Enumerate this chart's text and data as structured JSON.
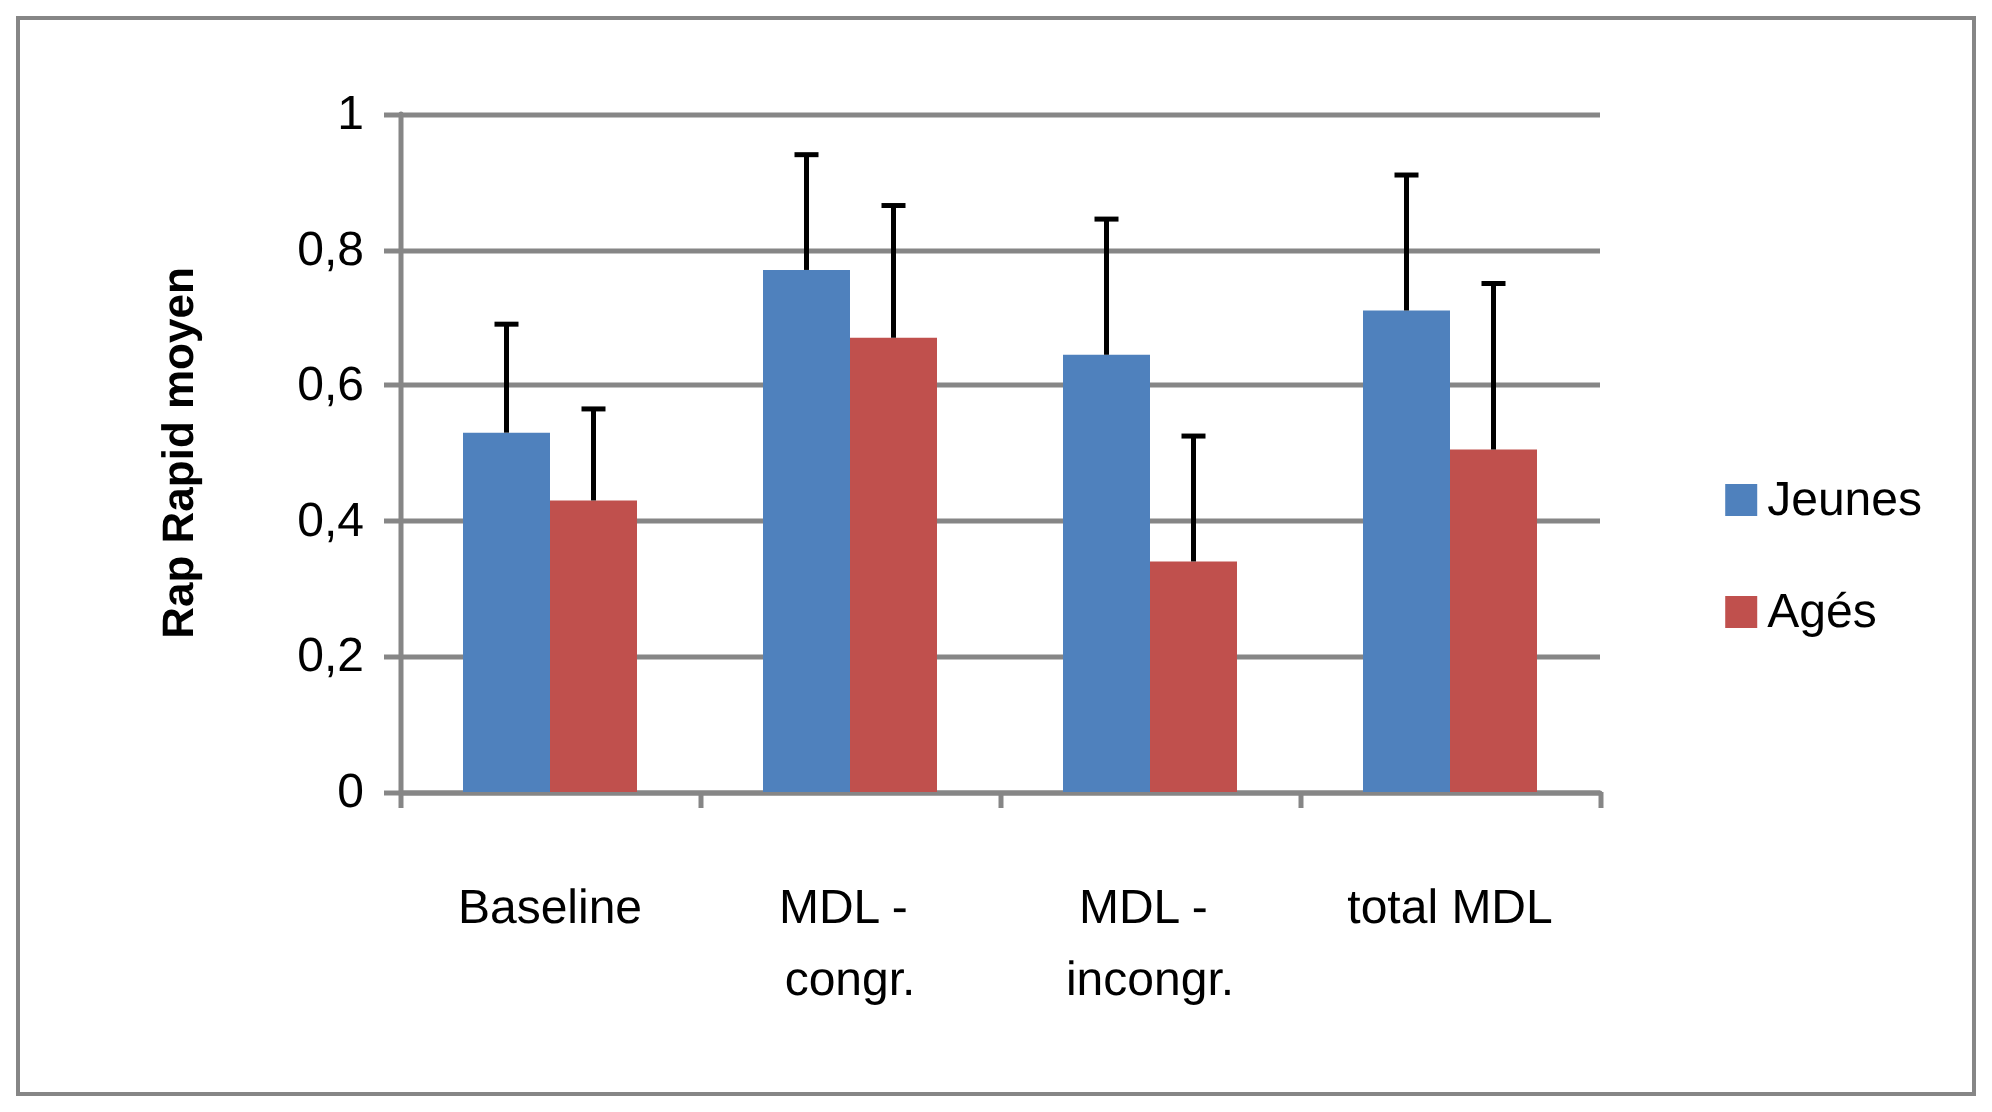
{
  "chart_data": {
    "type": "bar",
    "ylabel": "Rap Rapid moyen",
    "categories": [
      "Baseline",
      "MDL - congr.",
      "MDL - incongr.",
      "total MDL"
    ],
    "series": [
      {
        "name": "Jeunes",
        "color": "#4f81bd",
        "values": [
          0.53,
          0.77,
          0.645,
          0.71
        ],
        "errors": [
          [
            0.53,
            0.69
          ],
          [
            0.77,
            0.94
          ],
          [
            0.645,
            0.845
          ],
          [
            0.71,
            0.91
          ]
        ]
      },
      {
        "name": "Agés",
        "color": "#c0504d",
        "values": [
          0.43,
          0.67,
          0.34,
          0.505
        ],
        "errors": [
          [
            0.43,
            0.565
          ],
          [
            0.67,
            0.865
          ],
          [
            0.34,
            0.525
          ],
          [
            0.505,
            0.75
          ]
        ]
      }
    ],
    "ylim": [
      0,
      1
    ],
    "yticks": [
      0,
      {
        "value": 0.2,
        "label": "0,2"
      },
      {
        "value": 0.4,
        "label": "0,4"
      },
      {
        "value": 0.6,
        "label": "0,6"
      },
      {
        "value": 0.8,
        "label": "0,8"
      },
      1
    ],
    "grid": "y",
    "legend": "right"
  }
}
